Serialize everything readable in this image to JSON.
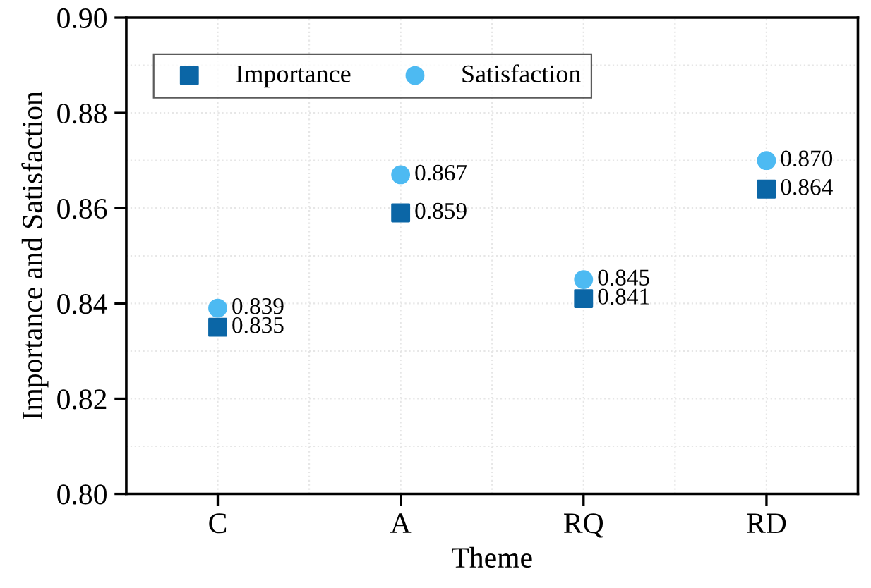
{
  "chart_data": {
    "type": "scatter",
    "xlabel": "Theme",
    "ylabel": "Importance and Satisfaction",
    "categories": [
      "C",
      "A",
      "RQ",
      "RD"
    ],
    "series": [
      {
        "name": "Importance",
        "color": "#0b66a6",
        "marker": "square",
        "values": [
          0.835,
          0.859,
          0.841,
          0.864
        ],
        "value_labels": [
          "0.835",
          "0.859",
          "0.841",
          "0.864"
        ]
      },
      {
        "name": "Satisfaction",
        "color": "#4dbaf2",
        "marker": "circle",
        "values": [
          0.839,
          0.867,
          0.845,
          0.87
        ],
        "value_labels": [
          "0.839",
          "0.867",
          "0.845",
          "0.870"
        ]
      }
    ],
    "ylim": [
      0.8,
      0.9
    ],
    "yticks": [
      {
        "value": 0.8,
        "label": "0.80"
      },
      0.82,
      0.84,
      0.86,
      0.88,
      {
        "value": 0.9,
        "label": "0.90"
      }
    ],
    "grid": true,
    "legend": "top left"
  }
}
